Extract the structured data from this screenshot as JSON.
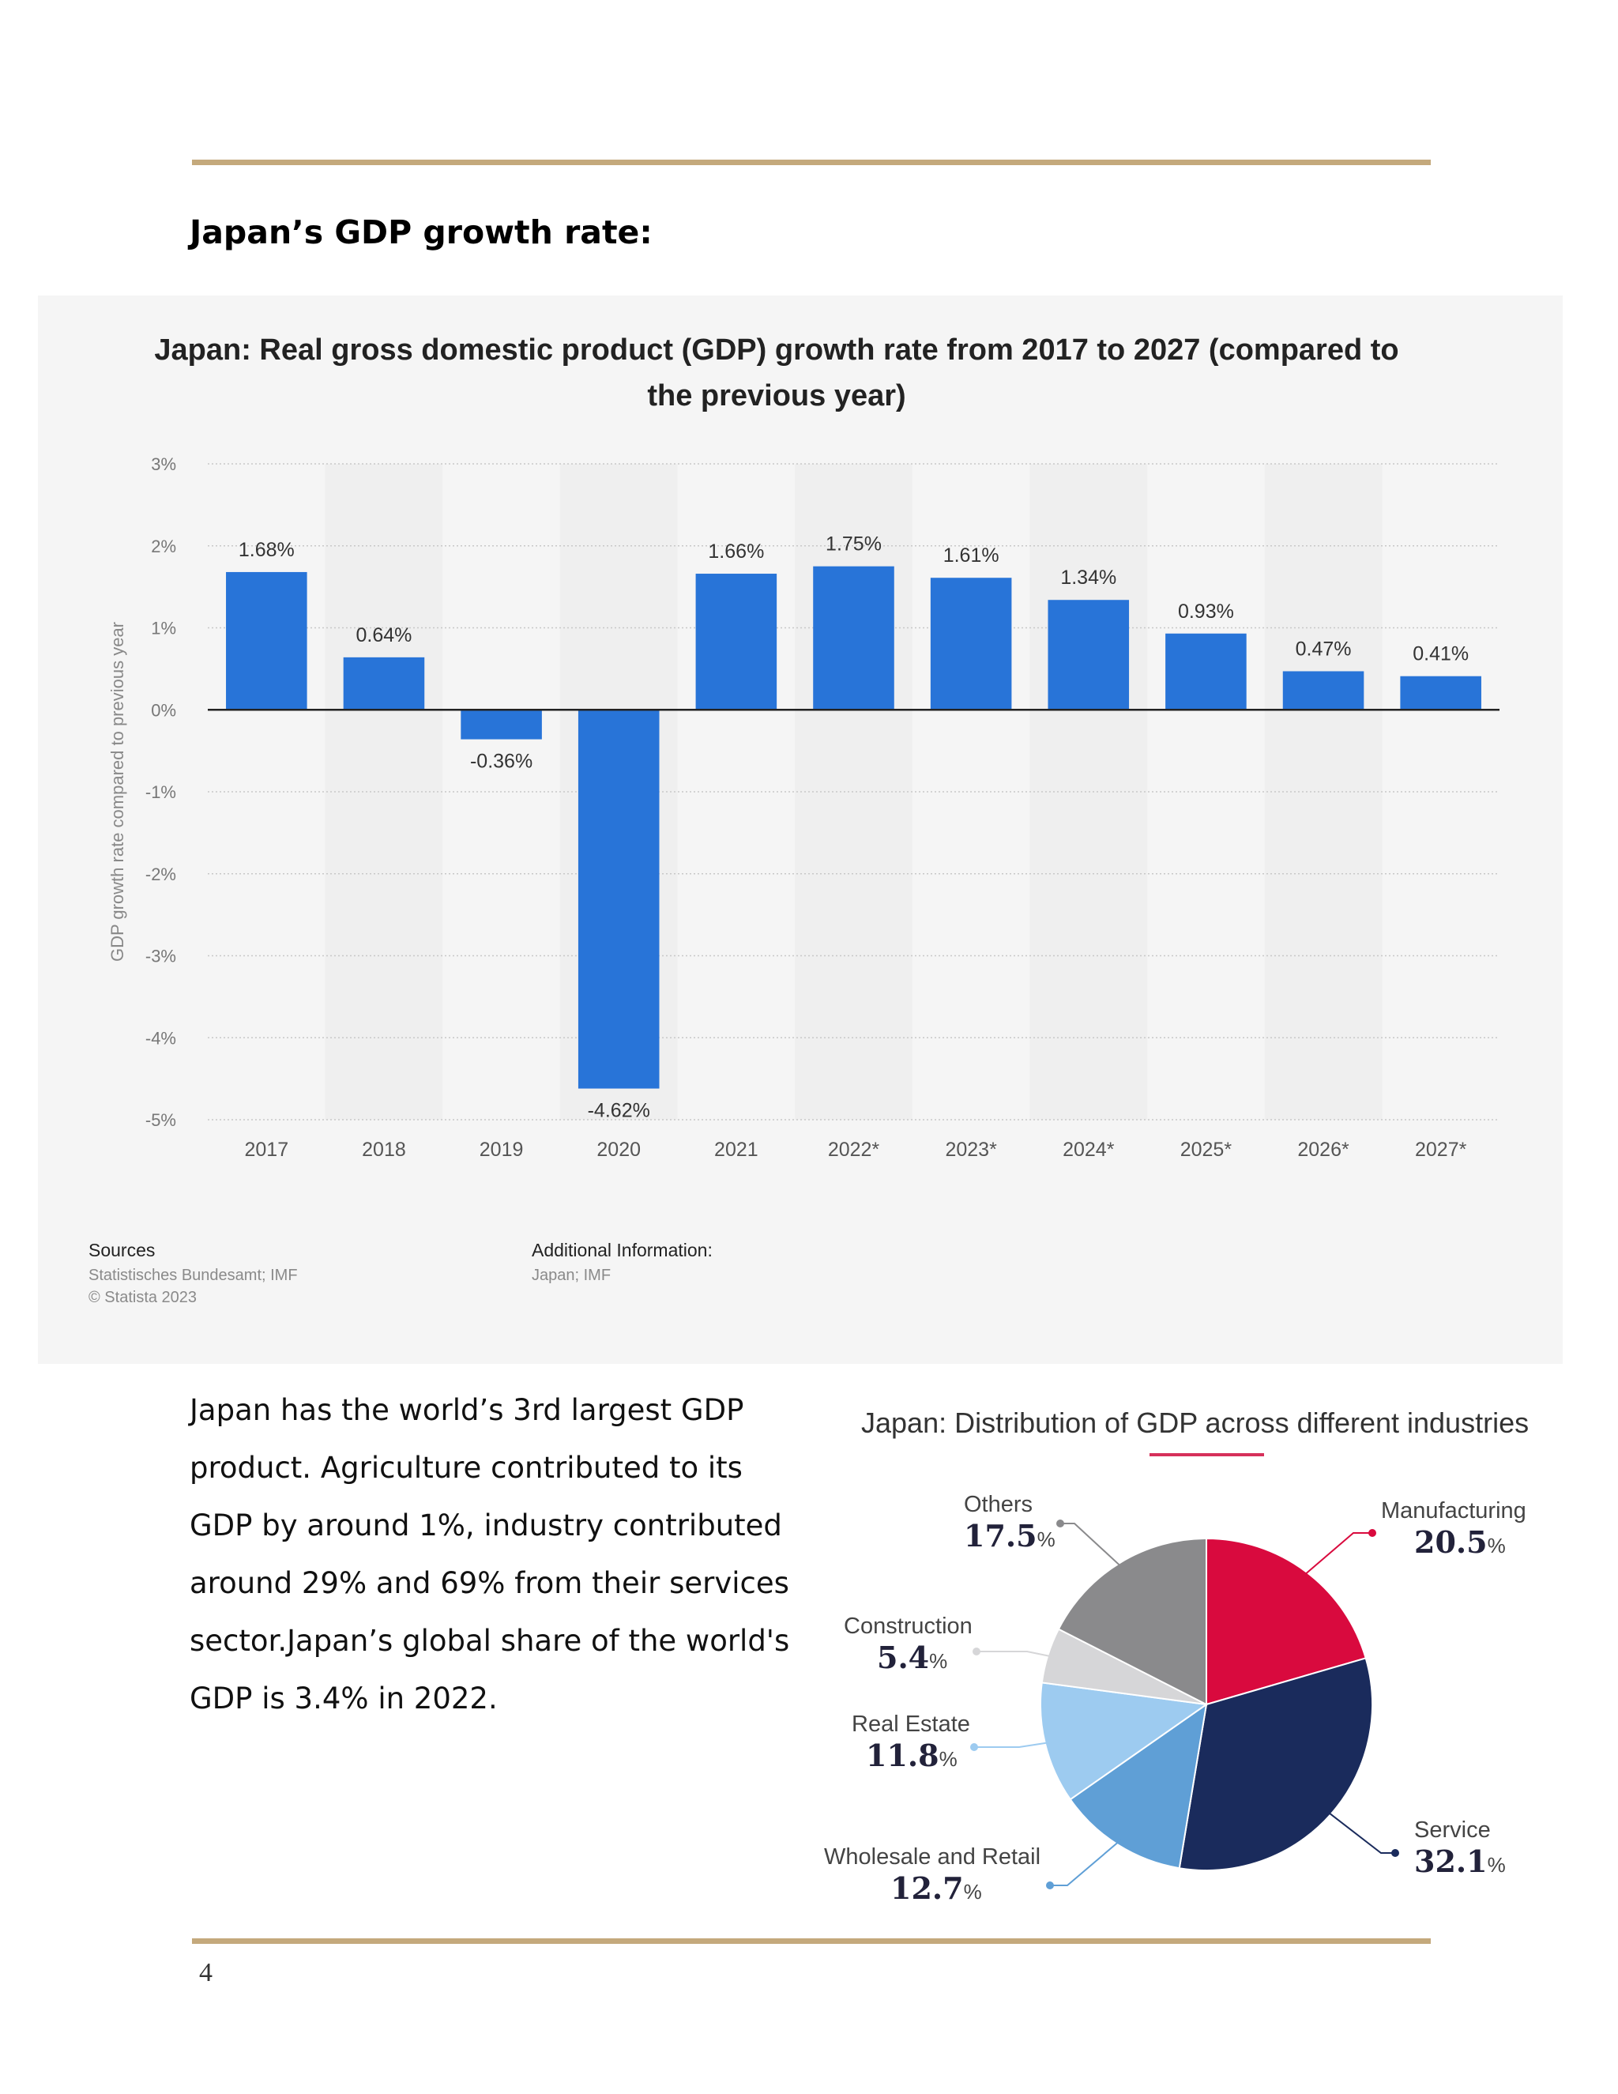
{
  "heading": "Japan’s GDP growth rate:",
  "chart1_title": "Japan: Real gross domestic product (GDP) growth rate from 2017 to 2027 (compared to the previous year)",
  "sources": {
    "heading": "Sources",
    "lines": [
      "Statistisches Bundesamt; IMF",
      "© Statista 2023"
    ]
  },
  "additional_info": {
    "heading": "Additional Information:",
    "text": "Japan; IMF"
  },
  "body_text": "Japan has the world’s 3rd largest GDP product. Agriculture contributed to its GDP by around 1%, industry contributed around 29% and 69% from their services sector.Japan’s global share of the world's GDP is 3.4% in 2022.",
  "pie_title": "Japan: Distribution of GDP across different industries",
  "page_number": "4",
  "colors": {
    "rule": "#c4a97c",
    "bar": "#2874d8",
    "pie": {
      "Manufacturing": "#d90a3e",
      "Service": "#1a2b5c",
      "Wholesale and Retail": "#5f9fd6",
      "Real Estate": "#9dcbf0",
      "Construction": "#d6d6d8",
      "Others": "#8a8a8c"
    }
  },
  "chart_data": [
    {
      "type": "bar",
      "title": "Japan: Real gross domestic product (GDP) growth rate from 2017 to 2027 (compared to the previous year)",
      "ylabel": "GDP growth rate compared to previous year",
      "xlabel": "",
      "categories": [
        "2017",
        "2018",
        "2019",
        "2020",
        "2021",
        "2022*",
        "2023*",
        "2024*",
        "2025*",
        "2026*",
        "2027*"
      ],
      "values": [
        1.68,
        0.64,
        -0.36,
        -4.62,
        1.66,
        1.75,
        1.61,
        1.34,
        0.93,
        0.47,
        0.41
      ],
      "value_labels": [
        "1.68%",
        "0.64%",
        "-0.36%",
        "-4.62%",
        "1.66%",
        "1.75%",
        "1.61%",
        "1.34%",
        "0.93%",
        "0.47%",
        "0.41%"
      ],
      "yticks": [
        "3%",
        "2%",
        "1%",
        "0%",
        "-1%",
        "-2%",
        "-3%",
        "-4%",
        "-5%"
      ],
      "ylim": [
        -5,
        3
      ],
      "grid": true
    },
    {
      "type": "pie",
      "title": "Japan: Distribution of GDP across different industries",
      "slices": [
        {
          "label": "Manufacturing",
          "value": 20.5
        },
        {
          "label": "Service",
          "value": 32.1
        },
        {
          "label": "Wholesale and Retail",
          "value": 12.7
        },
        {
          "label": "Real Estate",
          "value": 11.8
        },
        {
          "label": "Construction",
          "value": 5.4
        },
        {
          "label": "Others",
          "value": 17.5
        }
      ]
    }
  ]
}
